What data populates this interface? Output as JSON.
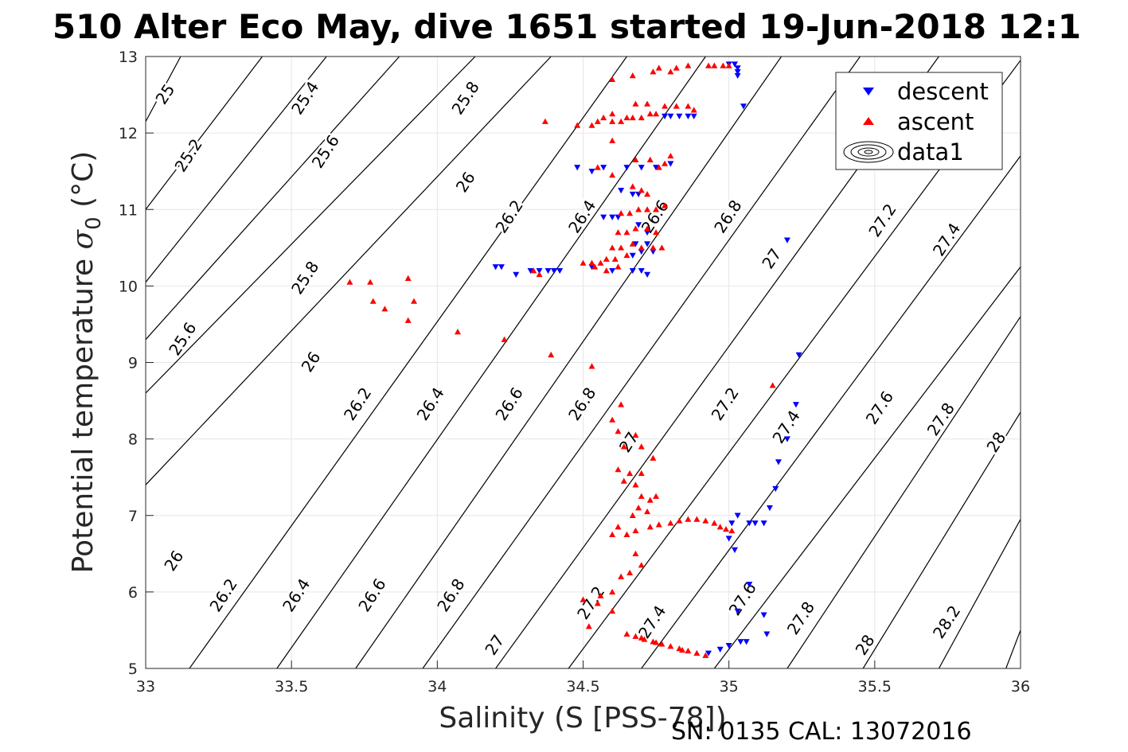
{
  "title": "510 Alter Eco May, dive 1651 started 19-Jun-2018 12:1",
  "footer": "SN: 0135  CAL: 13072016",
  "colors": {
    "descent": "#0000ff",
    "ascent": "#ff0000",
    "contour": "#000000",
    "grid": "#e6e6e6"
  },
  "chart_data": {
    "type": "scatter",
    "xlabel": "Salinity (S [PSS-78])",
    "ylabel_main": "Potential temperature ",
    "ylabel_sigma": "σ",
    "ylabel_sub": "0",
    "ylabel_unit": " (°C)",
    "xlim": [
      33,
      36
    ],
    "ylim": [
      5,
      13
    ],
    "x_ticks": [
      "33",
      "33.5",
      "34",
      "34.5",
      "35",
      "35.5",
      "36"
    ],
    "y_ticks": [
      "5",
      "6",
      "7",
      "8",
      "9",
      "10",
      "11",
      "12",
      "13"
    ],
    "grid": true,
    "legend_position": "top-right",
    "legend": [
      "descent",
      "ascent",
      "data1"
    ],
    "series": [
      {
        "name": "descent",
        "marker": "triangle-down",
        "points": [
          [
            35.0,
            12.9
          ],
          [
            35.02,
            12.9
          ],
          [
            35.03,
            12.85
          ],
          [
            35.03,
            12.8
          ],
          [
            35.03,
            12.75
          ],
          [
            35.05,
            12.35
          ],
          [
            34.78,
            12.22
          ],
          [
            34.8,
            12.22
          ],
          [
            34.83,
            12.22
          ],
          [
            34.86,
            12.22
          ],
          [
            34.88,
            12.22
          ],
          [
            34.48,
            11.55
          ],
          [
            34.53,
            11.5
          ],
          [
            34.57,
            11.55
          ],
          [
            34.65,
            11.55
          ],
          [
            34.7,
            11.55
          ],
          [
            34.75,
            11.55
          ],
          [
            34.8,
            11.6
          ],
          [
            34.63,
            11.25
          ],
          [
            34.67,
            11.2
          ],
          [
            34.69,
            11.2
          ],
          [
            34.57,
            10.9
          ],
          [
            34.6,
            10.9
          ],
          [
            34.62,
            10.9
          ],
          [
            34.69,
            10.8
          ],
          [
            34.72,
            10.7
          ],
          [
            34.68,
            10.55
          ],
          [
            34.72,
            10.55
          ],
          [
            34.2,
            10.25
          ],
          [
            34.22,
            10.25
          ],
          [
            34.27,
            10.15
          ],
          [
            34.32,
            10.2
          ],
          [
            34.35,
            10.2
          ],
          [
            34.38,
            10.2
          ],
          [
            34.4,
            10.2
          ],
          [
            34.42,
            10.2
          ],
          [
            34.53,
            10.25
          ],
          [
            34.6,
            10.2
          ],
          [
            34.67,
            10.2
          ],
          [
            34.7,
            10.2
          ],
          [
            34.72,
            10.15
          ],
          [
            34.67,
            10.4
          ],
          [
            34.7,
            10.45
          ],
          [
            34.74,
            10.45
          ],
          [
            35.2,
            10.6
          ],
          [
            35.24,
            9.1
          ],
          [
            35.23,
            8.45
          ],
          [
            35.2,
            8.0
          ],
          [
            35.17,
            7.7
          ],
          [
            35.16,
            7.35
          ],
          [
            35.14,
            7.1
          ],
          [
            35.07,
            6.9
          ],
          [
            35.09,
            6.9
          ],
          [
            35.03,
            7.0
          ],
          [
            35.01,
            6.9
          ],
          [
            35.0,
            6.7
          ],
          [
            35.02,
            6.55
          ],
          [
            35.12,
            6.9
          ],
          [
            35.12,
            5.7
          ],
          [
            35.13,
            5.45
          ],
          [
            35.03,
            5.75
          ],
          [
            35.07,
            6.1
          ],
          [
            35.06,
            5.35
          ],
          [
            34.93,
            5.2
          ],
          [
            34.97,
            5.25
          ],
          [
            35.0,
            5.3
          ],
          [
            35.04,
            5.35
          ]
        ]
      },
      {
        "name": "ascent",
        "marker": "triangle-up",
        "points": [
          [
            34.95,
            12.88
          ],
          [
            34.98,
            12.88
          ],
          [
            35.0,
            12.88
          ],
          [
            34.93,
            12.88
          ],
          [
            34.86,
            12.88
          ],
          [
            34.8,
            12.8
          ],
          [
            34.74,
            12.8
          ],
          [
            34.67,
            12.75
          ],
          [
            34.6,
            12.7
          ],
          [
            34.82,
            12.85
          ],
          [
            34.76,
            12.85
          ],
          [
            34.68,
            12.38
          ],
          [
            34.72,
            12.38
          ],
          [
            34.78,
            12.35
          ],
          [
            34.82,
            12.35
          ],
          [
            34.86,
            12.35
          ],
          [
            34.88,
            12.3
          ],
          [
            34.73,
            12.25
          ],
          [
            34.75,
            12.25
          ],
          [
            34.65,
            12.2
          ],
          [
            34.67,
            12.2
          ],
          [
            34.7,
            12.2
          ],
          [
            34.57,
            12.2
          ],
          [
            34.55,
            12.15
          ],
          [
            34.6,
            12.15
          ],
          [
            34.63,
            12.15
          ],
          [
            34.6,
            12.25
          ],
          [
            34.37,
            12.15
          ],
          [
            34.48,
            12.1
          ],
          [
            34.53,
            12.1
          ],
          [
            34.6,
            11.9
          ],
          [
            34.68,
            11.65
          ],
          [
            34.73,
            11.65
          ],
          [
            34.76,
            11.55
          ],
          [
            34.78,
            11.6
          ],
          [
            34.8,
            11.7
          ],
          [
            34.55,
            11.55
          ],
          [
            34.6,
            11.45
          ],
          [
            34.67,
            11.3
          ],
          [
            34.7,
            11.25
          ],
          [
            34.72,
            11.2
          ],
          [
            34.69,
            11.0
          ],
          [
            34.72,
            11.0
          ],
          [
            34.75,
            11.0
          ],
          [
            34.78,
            11.05
          ],
          [
            34.63,
            10.95
          ],
          [
            34.66,
            10.95
          ],
          [
            34.62,
            10.7
          ],
          [
            34.65,
            10.7
          ],
          [
            34.68,
            10.75
          ],
          [
            34.72,
            10.75
          ],
          [
            34.75,
            10.7
          ],
          [
            34.6,
            10.5
          ],
          [
            34.63,
            10.5
          ],
          [
            34.67,
            10.55
          ],
          [
            34.7,
            10.5
          ],
          [
            34.74,
            10.5
          ],
          [
            34.77,
            10.5
          ],
          [
            34.53,
            10.3
          ],
          [
            34.56,
            10.3
          ],
          [
            34.58,
            10.35
          ],
          [
            34.61,
            10.35
          ],
          [
            34.65,
            10.4
          ],
          [
            34.33,
            10.2
          ],
          [
            34.35,
            10.15
          ],
          [
            34.5,
            10.3
          ],
          [
            34.54,
            10.25
          ],
          [
            34.58,
            10.2
          ],
          [
            34.62,
            10.25
          ],
          [
            33.7,
            10.05
          ],
          [
            33.77,
            10.05
          ],
          [
            33.9,
            10.1
          ],
          [
            33.78,
            9.8
          ],
          [
            33.82,
            9.7
          ],
          [
            33.92,
            9.8
          ],
          [
            33.9,
            9.55
          ],
          [
            34.07,
            9.4
          ],
          [
            34.23,
            9.3
          ],
          [
            34.39,
            9.1
          ],
          [
            34.53,
            8.95
          ],
          [
            34.63,
            8.45
          ],
          [
            34.6,
            8.25
          ],
          [
            34.62,
            8.1
          ],
          [
            34.68,
            8.05
          ],
          [
            34.64,
            7.9
          ],
          [
            34.7,
            7.9
          ],
          [
            34.74,
            7.75
          ],
          [
            34.62,
            7.6
          ],
          [
            34.66,
            7.55
          ],
          [
            34.7,
            7.55
          ],
          [
            34.64,
            7.45
          ],
          [
            34.68,
            7.4
          ],
          [
            34.7,
            7.25
          ],
          [
            34.73,
            7.2
          ],
          [
            34.69,
            7.1
          ],
          [
            34.75,
            7.25
          ],
          [
            34.72,
            7.05
          ],
          [
            34.67,
            7.0
          ],
          [
            34.62,
            6.85
          ],
          [
            34.65,
            6.75
          ],
          [
            34.68,
            6.8
          ],
          [
            34.6,
            6.75
          ],
          [
            34.68,
            6.5
          ],
          [
            34.7,
            6.35
          ],
          [
            34.66,
            6.25
          ],
          [
            34.63,
            6.2
          ],
          [
            34.6,
            6.0
          ],
          [
            34.56,
            5.95
          ],
          [
            34.5,
            5.9
          ],
          [
            34.55,
            5.85
          ],
          [
            34.6,
            5.75
          ],
          [
            34.52,
            5.55
          ],
          [
            35.15,
            8.7
          ],
          [
            34.73,
            6.85
          ],
          [
            34.76,
            6.88
          ],
          [
            34.8,
            6.9
          ],
          [
            34.83,
            6.93
          ],
          [
            34.86,
            6.95
          ],
          [
            34.89,
            6.95
          ],
          [
            34.92,
            6.93
          ],
          [
            34.95,
            6.9
          ],
          [
            34.97,
            6.85
          ],
          [
            34.99,
            6.82
          ],
          [
            35.01,
            6.8
          ],
          [
            34.65,
            5.45
          ],
          [
            34.68,
            5.42
          ],
          [
            34.71,
            5.38
          ],
          [
            34.74,
            5.35
          ],
          [
            34.77,
            5.32
          ],
          [
            34.8,
            5.29
          ],
          [
            34.83,
            5.26
          ],
          [
            34.86,
            5.23
          ],
          [
            34.89,
            5.2
          ],
          [
            34.92,
            5.17
          ],
          [
            34.7,
            5.4
          ],
          [
            34.75,
            5.34
          ],
          [
            34.84,
            5.24
          ]
        ]
      }
    ],
    "contours": [
      {
        "label": "25",
        "points": [
          [
            33.12,
            13.0
          ],
          [
            33.0,
            12.15
          ]
        ]
      },
      {
        "label": "25.2",
        "points": [
          [
            33.4,
            13.0
          ],
          [
            33.0,
            11.0
          ]
        ]
      },
      {
        "label": "25.4",
        "points": [
          [
            33.62,
            13.0
          ],
          [
            33.0,
            10.05
          ]
        ]
      },
      {
        "label": "25.6",
        "points": [
          [
            33.87,
            13.0
          ],
          [
            33.0,
            9.3
          ]
        ]
      },
      {
        "label": "25.8",
        "points": [
          [
            34.13,
            13.0
          ],
          [
            33.0,
            8.6
          ]
        ]
      },
      {
        "label": "26",
        "points": [
          [
            34.39,
            13.0
          ],
          [
            33.0,
            7.4
          ]
        ]
      },
      {
        "label": "26.2",
        "points": [
          [
            34.65,
            13.0
          ],
          [
            33.15,
            5.0
          ]
        ]
      },
      {
        "label": "26.4",
        "points": [
          [
            34.92,
            13.0
          ],
          [
            33.45,
            5.0
          ]
        ]
      },
      {
        "label": "26.6",
        "points": [
          [
            35.18,
            13.0
          ],
          [
            33.72,
            5.0
          ]
        ]
      },
      {
        "label": "26.8",
        "points": [
          [
            35.45,
            13.0
          ],
          [
            33.95,
            5.0
          ]
        ]
      },
      {
        "label": "27",
        "points": [
          [
            35.72,
            13.0
          ],
          [
            34.2,
            5.0
          ]
        ]
      },
      {
        "label": "27.2",
        "points": [
          [
            36.0,
            12.95
          ],
          [
            34.45,
            5.0
          ]
        ]
      },
      {
        "label": "27.4",
        "points": [
          [
            36.0,
            11.7
          ],
          [
            34.7,
            5.0
          ]
        ]
      },
      {
        "label": "27.6",
        "points": [
          [
            36.0,
            10.25
          ],
          [
            34.95,
            5.0
          ]
        ]
      },
      {
        "label": "27.8",
        "points": [
          [
            36.0,
            9.6
          ],
          [
            35.2,
            5.0
          ]
        ]
      },
      {
        "label": "28",
        "points": [
          [
            36.0,
            8.35
          ],
          [
            35.46,
            5.0
          ]
        ]
      },
      {
        "label": "28.2",
        "points": [
          [
            36.0,
            6.95
          ],
          [
            35.72,
            5.0
          ]
        ]
      },
      {
        "label": "",
        "points": [
          [
            36.0,
            5.5
          ],
          [
            35.95,
            5.0
          ]
        ]
      }
    ],
    "contour_labels": [
      {
        "text": "25",
        "x": 33.07,
        "y": 12.5
      },
      {
        "text": "25.2",
        "x": 33.15,
        "y": 11.7
      },
      {
        "text": "25.4",
        "x": 33.55,
        "y": 12.45
      },
      {
        "text": "25.6",
        "x": 33.62,
        "y": 11.75
      },
      {
        "text": "25.8",
        "x": 34.1,
        "y": 12.45
      },
      {
        "text": "26",
        "x": 34.1,
        "y": 11.35
      },
      {
        "text": "26.2",
        "x": 34.25,
        "y": 10.9
      },
      {
        "text": "26.4",
        "x": 34.5,
        "y": 10.9
      },
      {
        "text": "26.6",
        "x": 34.75,
        "y": 10.9
      },
      {
        "text": "26.8",
        "x": 35.0,
        "y": 10.9
      },
      {
        "text": "27",
        "x": 35.15,
        "y": 10.35
      },
      {
        "text": "27.2",
        "x": 35.53,
        "y": 10.85
      },
      {
        "text": "27.4",
        "x": 35.75,
        "y": 10.6
      },
      {
        "text": "25.8",
        "x": 33.55,
        "y": 10.1
      },
      {
        "text": "25.6",
        "x": 33.13,
        "y": 9.3
      },
      {
        "text": "26",
        "x": 33.57,
        "y": 9.0
      },
      {
        "text": "26.2",
        "x": 33.73,
        "y": 8.45
      },
      {
        "text": "26.4",
        "x": 33.98,
        "y": 8.45
      },
      {
        "text": "26.6",
        "x": 34.25,
        "y": 8.45
      },
      {
        "text": "26.8",
        "x": 34.5,
        "y": 8.45
      },
      {
        "text": "27",
        "x": 34.66,
        "y": 7.95
      },
      {
        "text": "27.2",
        "x": 34.99,
        "y": 8.45
      },
      {
        "text": "27.4",
        "x": 35.2,
        "y": 8.15
      },
      {
        "text": "27.6",
        "x": 35.52,
        "y": 8.4
      },
      {
        "text": "27.8",
        "x": 35.73,
        "y": 8.25
      },
      {
        "text": "28",
        "x": 35.92,
        "y": 7.95
      },
      {
        "text": "26",
        "x": 33.1,
        "y": 6.4
      },
      {
        "text": "26.2",
        "x": 33.27,
        "y": 5.95
      },
      {
        "text": "26.4",
        "x": 33.52,
        "y": 5.95
      },
      {
        "text": "26.6",
        "x": 33.78,
        "y": 5.95
      },
      {
        "text": "26.8",
        "x": 34.05,
        "y": 5.95
      },
      {
        "text": "27",
        "x": 34.2,
        "y": 5.3
      },
      {
        "text": "27.2",
        "x": 34.53,
        "y": 5.85
      },
      {
        "text": "27.4",
        "x": 34.74,
        "y": 5.6
      },
      {
        "text": "27.6",
        "x": 35.05,
        "y": 5.9
      },
      {
        "text": "27.8",
        "x": 35.25,
        "y": 5.65
      },
      {
        "text": "28",
        "x": 35.47,
        "y": 5.3
      },
      {
        "text": "28.2",
        "x": 35.75,
        "y": 5.6
      }
    ]
  }
}
